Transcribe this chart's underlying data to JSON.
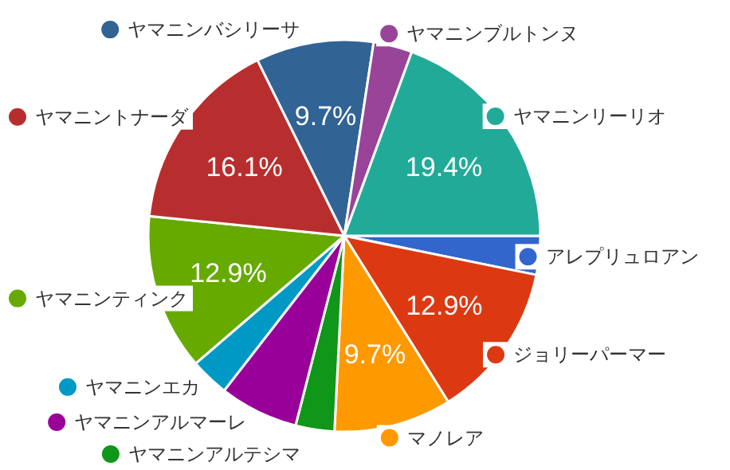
{
  "chart_data": {
    "type": "pie",
    "legend": "right",
    "categories": [
      "アレプリュロアン",
      "ジョリーパーマー",
      "マノレア",
      "ヤマニンアルテシマ",
      "ヤマニンアルマーレ",
      "ヤマニンエカ",
      "ヤマニンティンク",
      "ヤマニントナーダ",
      "ヤマニンバシリーサ",
      "ヤマニンブルトンヌ",
      "ヤマニンリーリオ"
    ],
    "values": [
      3.2,
      12.9,
      9.7,
      3.2,
      6.5,
      3.2,
      12.9,
      16.1,
      9.7,
      3.2,
      19.4
    ],
    "colors": [
      "#3366cc",
      "#dc3912",
      "#ff9900",
      "#109618",
      "#990099",
      "#0099c6",
      "#66aa00",
      "#b82e2e",
      "#316395",
      "#994499",
      "#22aa99"
    ],
    "value_labels": [
      null,
      "12.9%",
      "9.7%",
      null,
      null,
      null,
      "12.9%",
      "16.1%",
      "9.7%",
      null,
      "19.4%"
    ]
  }
}
